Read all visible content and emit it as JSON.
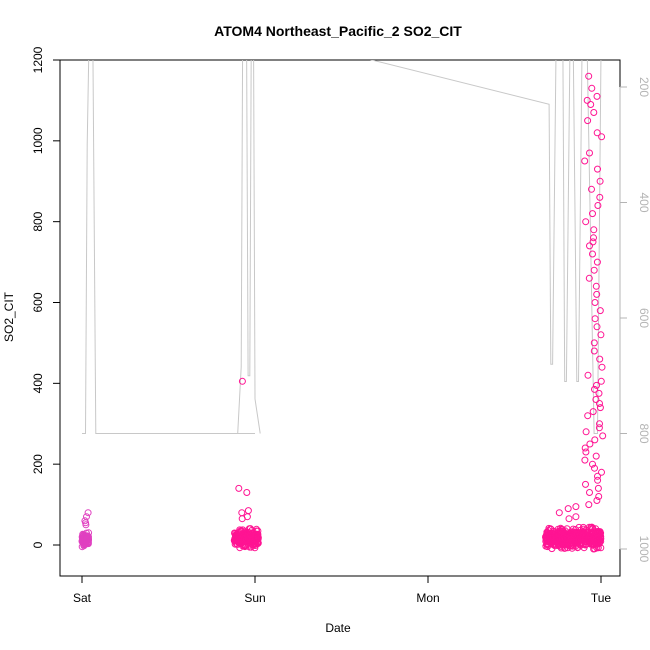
{
  "chart_data": {
    "type": "scatter",
    "title": "ATOM4 Northeast_Pacific_2 SO2_CIT",
    "xlabel": "Date",
    "ylabel": "SO2_CIT",
    "x_ticks": [
      "Sat",
      "Sun",
      "Mon",
      "Tue"
    ],
    "x_range_days": [
      -0.05,
      3.12
    ],
    "ylim": [
      -75,
      1200
    ],
    "y_ticks": [
      0,
      200,
      400,
      600,
      800,
      1000,
      1200
    ],
    "y2_ticks": [
      200,
      400,
      600,
      800,
      1000
    ],
    "y2_range": [
      1020,
      140
    ],
    "colors": {
      "points": "#ff1493",
      "points_alt": "#e040c0",
      "pressure_line": "#c8c8c8",
      "axis": "#000000",
      "y2_axis": "#b4b4b4"
    },
    "pressure_line_path": [
      [
        0.0,
        800
      ],
      [
        0.02,
        800
      ],
      [
        0.03,
        300
      ],
      [
        0.04,
        130
      ],
      [
        0.05,
        20
      ],
      [
        0.06,
        20
      ],
      [
        0.08,
        800
      ],
      [
        1.0,
        800
      ],
      [
        0.88,
        800
      ],
      [
        0.9,
        800
      ],
      [
        0.92,
        685
      ],
      [
        0.93,
        20
      ],
      [
        0.95,
        20
      ],
      [
        0.96,
        700
      ],
      [
        0.97,
        700
      ],
      [
        0.98,
        20
      ],
      [
        0.99,
        20
      ],
      [
        1.0,
        740
      ],
      [
        1.03,
        800
      ]
    ],
    "pressure_line_flight2": [
      [
        1.5,
        140
      ],
      [
        2.7,
        230
      ],
      [
        2.71,
        680
      ],
      [
        2.72,
        680
      ],
      [
        2.74,
        140
      ],
      [
        2.78,
        140
      ],
      [
        2.79,
        710
      ],
      [
        2.8,
        710
      ],
      [
        2.82,
        140
      ],
      [
        2.84,
        140
      ],
      [
        2.86,
        710
      ],
      [
        2.87,
        710
      ],
      [
        2.89,
        140
      ],
      [
        2.92,
        140
      ],
      [
        2.96,
        800
      ],
      [
        2.98,
        800
      ],
      [
        3.0,
        140
      ]
    ],
    "clusters": [
      {
        "name": "Sat",
        "x_start": 0.0,
        "x_end": 0.04,
        "count": 60,
        "y_min": -12,
        "y_max": 40,
        "outliers": [
          80,
          70,
          60,
          55,
          50
        ]
      },
      {
        "name": "Sun",
        "x_start": 0.88,
        "x_end": 1.02,
        "count": 260,
        "y_min": -18,
        "y_max": 50,
        "outliers": [
          405,
          140,
          130,
          85,
          80,
          70,
          65
        ]
      },
      {
        "name": "Tue",
        "x_start": 2.68,
        "x_end": 3.0,
        "count": 520,
        "y_min": -20,
        "y_max": 55,
        "outliers": [
          100,
          95,
          90,
          80,
          70,
          65
        ]
      },
      {
        "name": "Tue-high",
        "x_start": 2.9,
        "x_end": 3.01,
        "count": 0,
        "y_min": 0,
        "y_max": 0,
        "outliers": [
          1160,
          1130,
          1110,
          1100,
          1090,
          1070,
          1050,
          1020,
          1010,
          970,
          950,
          930,
          900,
          880,
          860,
          840,
          820,
          800,
          780,
          760,
          750,
          740,
          720,
          700,
          680,
          660,
          640,
          620,
          600,
          580,
          560,
          540,
          520,
          500,
          480,
          460,
          440,
          420,
          405,
          395,
          385,
          375,
          360,
          350,
          340,
          330,
          320,
          300,
          290,
          280,
          270,
          260,
          250,
          240,
          230,
          220,
          210,
          200,
          190,
          180,
          170,
          160,
          150,
          140,
          130,
          120,
          110
        ]
      }
    ]
  }
}
